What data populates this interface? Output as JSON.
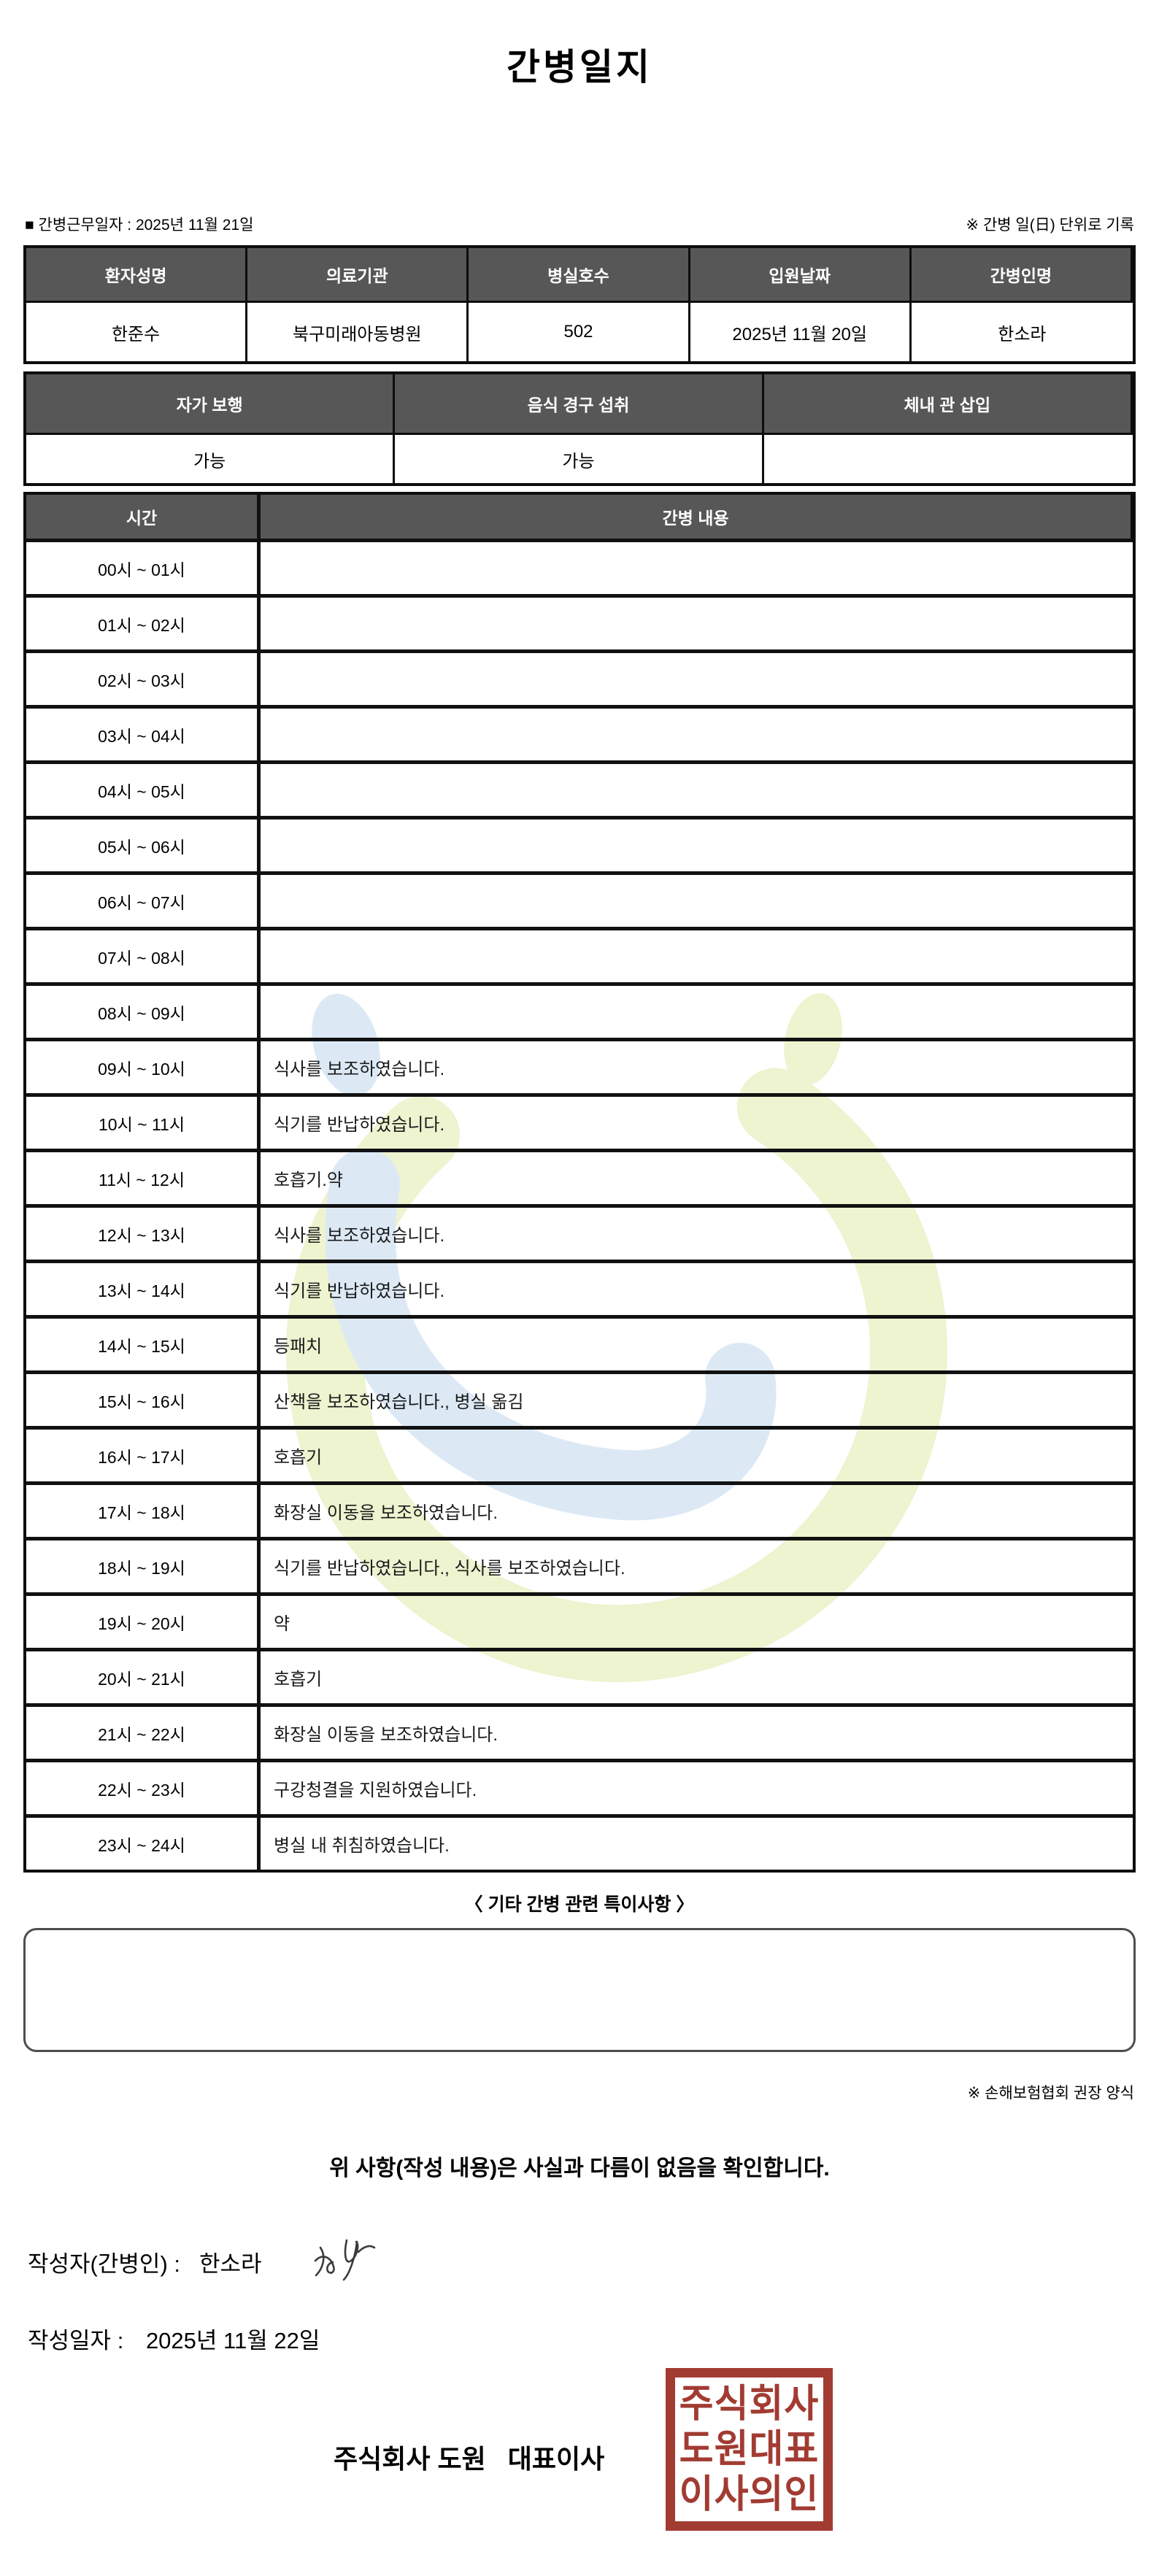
{
  "page": {
    "title": "간병일지",
    "work_date_label": "■ 간병근무일자 :",
    "work_date_value": "2025년 11월 21일",
    "unit_note": "※ 간병 일(日) 단위로 기록"
  },
  "patient_table": {
    "headers": [
      "환자성명",
      "의료기관",
      "병실호수",
      "입원날짜",
      "간병인명"
    ],
    "values": [
      "한준수",
      "북구미래아동병원",
      "502",
      "2025년 11월 20일",
      "한소라"
    ]
  },
  "condition_table": {
    "headers": [
      "자가 보행",
      "음식 경구 섭취",
      "체내 관 삽입"
    ],
    "values": [
      "가능",
      "가능",
      ""
    ]
  },
  "care_table": {
    "time_header": "시간",
    "content_header": "간병 내용",
    "rows": [
      {
        "time": "00시 ~ 01시",
        "content": ""
      },
      {
        "time": "01시 ~ 02시",
        "content": ""
      },
      {
        "time": "02시 ~ 03시",
        "content": ""
      },
      {
        "time": "03시 ~ 04시",
        "content": ""
      },
      {
        "time": "04시 ~ 05시",
        "content": ""
      },
      {
        "time": "05시 ~ 06시",
        "content": ""
      },
      {
        "time": "06시 ~ 07시",
        "content": ""
      },
      {
        "time": "07시 ~ 08시",
        "content": ""
      },
      {
        "time": "08시 ~ 09시",
        "content": ""
      },
      {
        "time": "09시 ~ 10시",
        "content": "식사를 보조하였습니다."
      },
      {
        "time": "10시 ~ 11시",
        "content": "식기를 반납하였습니다."
      },
      {
        "time": "11시 ~ 12시",
        "content": "호흡기.약"
      },
      {
        "time": "12시 ~ 13시",
        "content": "식사를 보조하였습니다."
      },
      {
        "time": "13시 ~ 14시",
        "content": "식기를 반납하였습니다."
      },
      {
        "time": "14시 ~ 15시",
        "content": "등패치"
      },
      {
        "time": "15시 ~ 16시",
        "content": "산책을 보조하였습니다., 병실 옮김"
      },
      {
        "time": "16시 ~ 17시",
        "content": "호흡기"
      },
      {
        "time": "17시 ~ 18시",
        "content": "화장실 이동을 보조하였습니다."
      },
      {
        "time": "18시 ~ 19시",
        "content": "식기를 반납하였습니다., 식사를 보조하였습니다."
      },
      {
        "time": "19시 ~ 20시",
        "content": "약"
      },
      {
        "time": "20시 ~ 21시",
        "content": "호흡기"
      },
      {
        "time": "21시 ~ 22시",
        "content": "화장실 이동을 보조하였습니다."
      },
      {
        "time": "22시 ~ 23시",
        "content": "구강청결을 지원하였습니다."
      },
      {
        "time": "23시 ~ 24시",
        "content": "병실 내 취침하였습니다."
      }
    ]
  },
  "notes": {
    "title": "〈 기타 간병 관련 특이사항 〉",
    "content": "",
    "form_note": "※ 손해보험협회 권장 양식"
  },
  "footer": {
    "confirmation": "위 사항(작성 내용)은 사실과 다름이 없음을 확인합니다.",
    "writer_label": "작성자(간병인) :",
    "writer_name": "한소라",
    "date_label": "작성일자 :",
    "date_value": "2025년 11월 22일",
    "company": "주식회사 도원   대표이사",
    "stamp_lines": [
      "주식회사",
      "도원대표",
      "이사의인"
    ]
  },
  "colors": {
    "header_bg": "#575757",
    "stamp_red": "#a23b32",
    "watermark_blue": "#d9e7f4",
    "watermark_yellow": "#edf2cc"
  }
}
